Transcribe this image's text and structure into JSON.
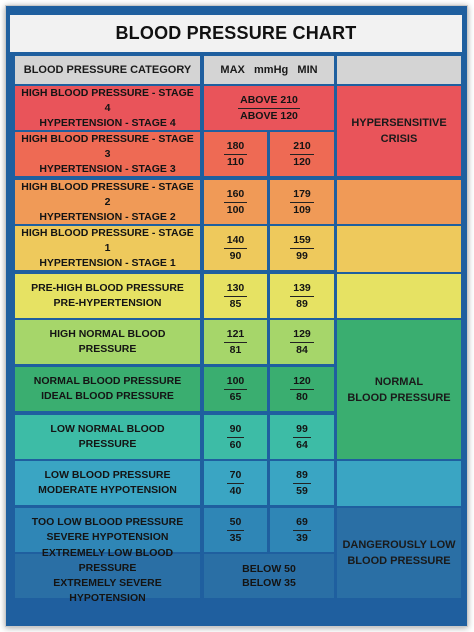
{
  "title": "BLOOD PRESSURE CHART",
  "header": {
    "category": "BLOOD PRESSURE CATEGORY",
    "values": "MAX   mmHg   MIN"
  },
  "rows": [
    {
      "cat1": "HIGH BLOOD PRESSURE - STAGE 4",
      "cat2": "HYPERTENSION - STAGE 4",
      "above1": "ABOVE 210",
      "above2": "ABOVE 120"
    },
    {
      "cat1": "HIGH BLOOD PRESSURE - STAGE 3",
      "cat2": "HYPERTENSION - STAGE 3",
      "max_sys": "180",
      "max_dia": "110",
      "min_sys": "210",
      "min_dia": "120"
    },
    {
      "cat1": "HIGH BLOOD PRESSURE - STAGE 2",
      "cat2": "HYPERTENSION - STAGE 2",
      "max_sys": "160",
      "max_dia": "100",
      "min_sys": "179",
      "min_dia": "109"
    },
    {
      "cat1": "HIGH BLOOD PRESSURE - STAGE 1",
      "cat2": "HYPERTENSION - STAGE 1",
      "max_sys": "140",
      "max_dia": "90",
      "min_sys": "159",
      "min_dia": "99"
    },
    {
      "cat1": "PRE-HIGH BLOOD PRESSURE",
      "cat2": "PRE-HYPERTENSION",
      "max_sys": "130",
      "max_dia": "85",
      "min_sys": "139",
      "min_dia": "89"
    },
    {
      "cat1": "HIGH NORMAL BLOOD PRESSURE",
      "cat2": "",
      "max_sys": "121",
      "max_dia": "81",
      "min_sys": "129",
      "min_dia": "84"
    },
    {
      "cat1": "NORMAL BLOOD PRESSURE",
      "cat2": "IDEAL BLOOD PRESSURE",
      "max_sys": "100",
      "max_dia": "65",
      "min_sys": "120",
      "min_dia": "80"
    },
    {
      "cat1": "LOW NORMAL BLOOD PRESSURE",
      "cat2": "",
      "max_sys": "90",
      "max_dia": "60",
      "min_sys": "99",
      "min_dia": "64"
    },
    {
      "cat1": "LOW BLOOD PRESSURE",
      "cat2": "MODERATE HYPOTENSION",
      "max_sys": "70",
      "max_dia": "40",
      "min_sys": "89",
      "min_dia": "59"
    },
    {
      "cat1": "TOO LOW BLOOD PRESSURE",
      "cat2": "SEVERE HYPOTENSION",
      "max_sys": "50",
      "max_dia": "35",
      "min_sys": "69",
      "min_dia": "39"
    },
    {
      "cat1": "EXTREMELY LOW BLOOD PRESSURE",
      "cat2": "EXTREMELY SEVERE HYPOTENSION",
      "below1": "BELOW 50",
      "below2": "BELOW 35"
    }
  ],
  "side": {
    "crisis1": "HYPERSENSITIVE",
    "crisis2": "CRISIS",
    "normal1": "NORMAL",
    "normal2": "BLOOD PRESSURE",
    "danger1": "DANGEROUSLY LOW",
    "danger2": "BLOOD PRESSURE"
  },
  "colors": {
    "row_colors": [
      "#e9545a",
      "#ee6a54",
      "#f09a57",
      "#eec95c",
      "#e6e263",
      "#a6d66a",
      "#3aae70",
      "#3dbca6",
      "#3aa5c3",
      "#2f86b6",
      "#2a6fa5"
    ],
    "side_crisis": "#e9545a",
    "side_normal": "#3aae70",
    "side_danger": "#2a6fa5"
  }
}
